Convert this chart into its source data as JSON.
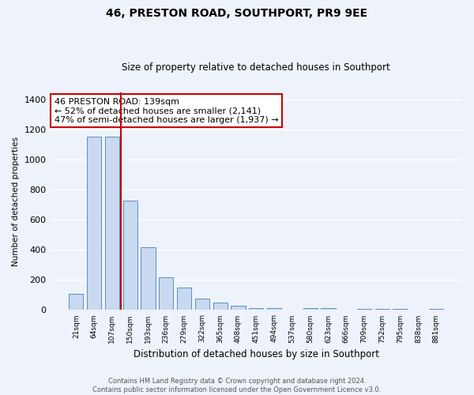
{
  "title1": "46, PRESTON ROAD, SOUTHPORT, PR9 9EE",
  "title2": "Size of property relative to detached houses in Southport",
  "xlabel": "Distribution of detached houses by size in Southport",
  "ylabel": "Number of detached properties",
  "bin_labels": [
    "21sqm",
    "64sqm",
    "107sqm",
    "150sqm",
    "193sqm",
    "236sqm",
    "279sqm",
    "322sqm",
    "365sqm",
    "408sqm",
    "451sqm",
    "494sqm",
    "537sqm",
    "580sqm",
    "623sqm",
    "666sqm",
    "709sqm",
    "752sqm",
    "795sqm",
    "838sqm",
    "881sqm"
  ],
  "bar_values": [
    110,
    1155,
    1155,
    730,
    420,
    220,
    150,
    75,
    50,
    30,
    15,
    15,
    0,
    12,
    12,
    0,
    10,
    10,
    10,
    0,
    10
  ],
  "bar_color": "#c8d9f0",
  "bar_edge_color": "#5a8fc0",
  "background_color": "#eef2fb",
  "grid_color": "#ffffff",
  "vline_color": "#cc0000",
  "annotation_text": "46 PRESTON ROAD: 139sqm\n← 52% of detached houses are smaller (2,141)\n47% of semi-detached houses are larger (1,937) →",
  "annotation_box_color": "#cc0000",
  "ylim": [
    0,
    1450
  ],
  "yticks": [
    0,
    200,
    400,
    600,
    800,
    1000,
    1200,
    1400
  ],
  "footer_line1": "Contains HM Land Registry data © Crown copyright and database right 2024.",
  "footer_line2": "Contains public sector information licensed under the Open Government Licence v3.0."
}
